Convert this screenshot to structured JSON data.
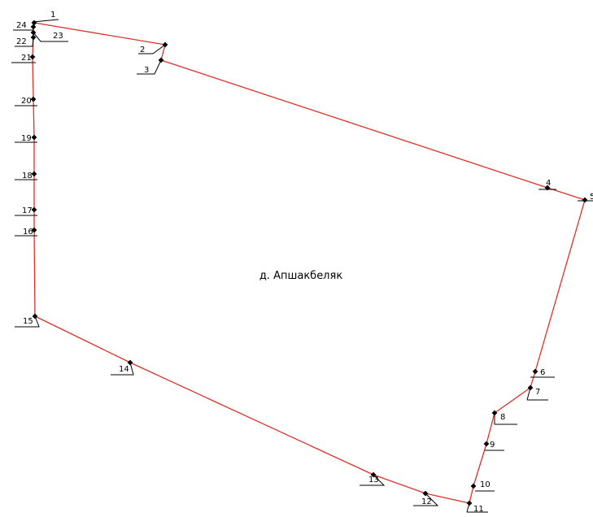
{
  "map": {
    "place_name": "д. Апшакбеляк",
    "colors": {
      "boundary": "#e0302a",
      "marker": "#000000",
      "background": "#ffffff"
    },
    "points": [
      {
        "id": "1",
        "label": "1"
      },
      {
        "id": "2",
        "label": "2"
      },
      {
        "id": "3",
        "label": "3"
      },
      {
        "id": "4",
        "label": "4"
      },
      {
        "id": "5",
        "label": "5"
      },
      {
        "id": "6",
        "label": "6"
      },
      {
        "id": "7",
        "label": "7"
      },
      {
        "id": "8",
        "label": "8"
      },
      {
        "id": "9",
        "label": "9"
      },
      {
        "id": "10",
        "label": "10"
      },
      {
        "id": "11",
        "label": "11"
      },
      {
        "id": "12",
        "label": "12"
      },
      {
        "id": "13",
        "label": "13"
      },
      {
        "id": "14",
        "label": "14"
      },
      {
        "id": "15",
        "label": "15"
      },
      {
        "id": "16",
        "label": "16"
      },
      {
        "id": "17",
        "label": "17"
      },
      {
        "id": "18",
        "label": "18"
      },
      {
        "id": "19",
        "label": "19"
      },
      {
        "id": "20",
        "label": "20"
      },
      {
        "id": "21",
        "label": "21"
      },
      {
        "id": "22",
        "label": "22"
      },
      {
        "id": "23",
        "label": "23"
      },
      {
        "id": "24",
        "label": "24"
      }
    ]
  }
}
